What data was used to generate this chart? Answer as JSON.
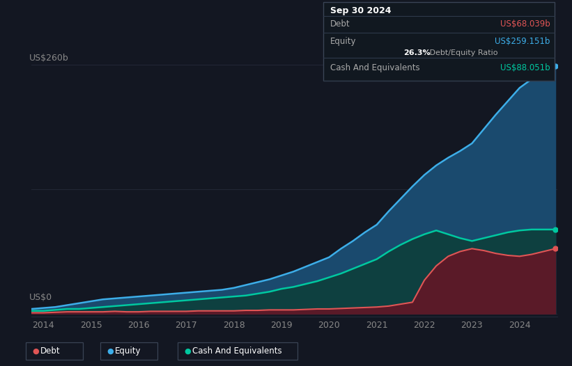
{
  "background_color": "#131722",
  "plot_bg_color": "#131722",
  "ylabel_top": "US$260b",
  "ylabel_bottom": "US$0",
  "x_labels": [
    "2014",
    "2015",
    "2016",
    "2017",
    "2018",
    "2019",
    "2020",
    "2021",
    "2022",
    "2023",
    "2024"
  ],
  "grid_color": "#2a3040",
  "debt_color": "#e05555",
  "equity_color": "#3daee9",
  "cash_color": "#00c8a0",
  "equity_fill": "#1a4a6e",
  "cash_fill": "#0e4040",
  "debt_fill": "#5a1a28",
  "years": [
    2013.75,
    2014.0,
    2014.25,
    2014.5,
    2014.75,
    2015.0,
    2015.25,
    2015.5,
    2015.75,
    2016.0,
    2016.25,
    2016.5,
    2016.75,
    2017.0,
    2017.25,
    2017.5,
    2017.75,
    2018.0,
    2018.25,
    2018.5,
    2018.75,
    2019.0,
    2019.25,
    2019.5,
    2019.75,
    2020.0,
    2020.25,
    2020.5,
    2020.75,
    2021.0,
    2021.25,
    2021.5,
    2021.75,
    2022.0,
    2022.25,
    2022.5,
    2022.75,
    2023.0,
    2023.25,
    2023.5,
    2023.75,
    2024.0,
    2024.25,
    2024.5,
    2024.75
  ],
  "debt": [
    1,
    1,
    1.5,
    2,
    2,
    2,
    2,
    2.5,
    2,
    2,
    2.5,
    2.5,
    2.5,
    2.5,
    3,
    3,
    3,
    3,
    3.5,
    3.5,
    4,
    4,
    4,
    4.5,
    5,
    5,
    5.5,
    6,
    6.5,
    7,
    8,
    10,
    12,
    35,
    50,
    60,
    65,
    68,
    66,
    63,
    61,
    60,
    62,
    65,
    68
  ],
  "equity": [
    5,
    6,
    7,
    9,
    11,
    13,
    15,
    16,
    17,
    18,
    19,
    20,
    21,
    22,
    23,
    24,
    25,
    27,
    30,
    33,
    36,
    40,
    44,
    49,
    54,
    59,
    68,
    76,
    85,
    93,
    107,
    120,
    133,
    145,
    155,
    163,
    170,
    178,
    193,
    208,
    222,
    236,
    245,
    252,
    259
  ],
  "cash": [
    3,
    3,
    4,
    5,
    5,
    6,
    7,
    8,
    9,
    10,
    11,
    12,
    13,
    14,
    15,
    16,
    17,
    18,
    19,
    21,
    23,
    26,
    28,
    31,
    34,
    38,
    42,
    47,
    52,
    57,
    65,
    72,
    78,
    83,
    87,
    83,
    79,
    76,
    79,
    82,
    85,
    87,
    88,
    88,
    88
  ],
  "tooltip_title": "Sep 30 2024",
  "tooltip_debt_label": "Debt",
  "tooltip_debt_value": "US$68.039b",
  "tooltip_equity_label": "Equity",
  "tooltip_equity_value": "US$259.151b",
  "tooltip_ratio": "26.3%",
  "tooltip_ratio_label": " Debt/Equity Ratio",
  "tooltip_cash_label": "Cash And Equivalents",
  "tooltip_cash_value": "US$88.051b",
  "legend_items": [
    "Debt",
    "Equity",
    "Cash And Equivalents"
  ],
  "ymax": 260
}
